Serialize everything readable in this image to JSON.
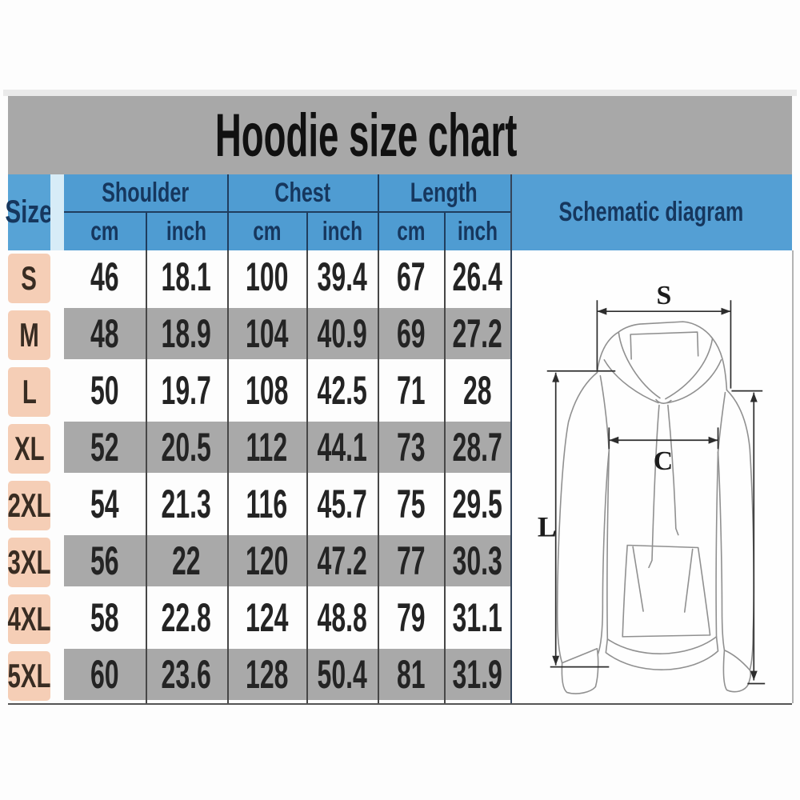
{
  "title": "Hoodie size chart",
  "table": {
    "size_header": "Size",
    "groups": [
      "Shoulder",
      "Chest",
      "Length"
    ],
    "units": [
      "cm",
      "inch",
      "cm",
      "inch",
      "cm",
      "inch"
    ],
    "schematic_header": "Schematic diagram",
    "rows": [
      {
        "size": "S",
        "values": [
          "46",
          "18.1",
          "100",
          "39.4",
          "67",
          "26.4"
        ]
      },
      {
        "size": "M",
        "values": [
          "48",
          "18.9",
          "104",
          "40.9",
          "69",
          "27.2"
        ]
      },
      {
        "size": "L",
        "values": [
          "50",
          "19.7",
          "108",
          "42.5",
          "71",
          "28"
        ]
      },
      {
        "size": "XL",
        "values": [
          "52",
          "20.5",
          "112",
          "44.1",
          "73",
          "28.7"
        ]
      },
      {
        "size": "2XL",
        "values": [
          "54",
          "21.3",
          "116",
          "45.7",
          "75",
          "29.5"
        ]
      },
      {
        "size": "3XL",
        "values": [
          "56",
          "22",
          "120",
          "47.2",
          "77",
          "30.3"
        ]
      },
      {
        "size": "4XL",
        "values": [
          "58",
          "22.8",
          "124",
          "48.8",
          "79",
          "31.1"
        ]
      },
      {
        "size": "5XL",
        "values": [
          "60",
          "23.6",
          "128",
          "50.4",
          "81",
          "31.9"
        ]
      }
    ]
  },
  "diagram": {
    "shoulder_label": "S",
    "chest_label": "C",
    "length_label": "L"
  },
  "colors": {
    "header_blue": "#4f9cd2",
    "size_header_blue": "#57a3d6",
    "header_text_navy": "#16375e",
    "size_cell_peach": "#f5ceb6",
    "row_gray": "#a9a9a9",
    "title_band_gray": "#a8a8a8",
    "divider_dark": "#474747"
  },
  "chart_data": {
    "type": "table",
    "title": "Hoodie size chart",
    "column_groups": [
      "Shoulder",
      "Chest",
      "Length"
    ],
    "columns": [
      "Size",
      "Shoulder cm",
      "Shoulder inch",
      "Chest cm",
      "Chest inch",
      "Length cm",
      "Length inch"
    ],
    "rows": [
      [
        "S",
        46,
        18.1,
        100,
        39.4,
        67,
        26.4
      ],
      [
        "M",
        48,
        18.9,
        104,
        40.9,
        69,
        27.2
      ],
      [
        "L",
        50,
        19.7,
        108,
        42.5,
        71,
        28
      ],
      [
        "XL",
        52,
        20.5,
        112,
        44.1,
        73,
        28.7
      ],
      [
        "2XL",
        54,
        21.3,
        116,
        45.7,
        75,
        29.5
      ],
      [
        "3XL",
        56,
        22,
        120,
        47.2,
        77,
        30.3
      ],
      [
        "4XL",
        58,
        22.8,
        124,
        48.8,
        79,
        31.1
      ],
      [
        "5XL",
        60,
        23.6,
        128,
        50.4,
        81,
        31.9
      ]
    ]
  }
}
